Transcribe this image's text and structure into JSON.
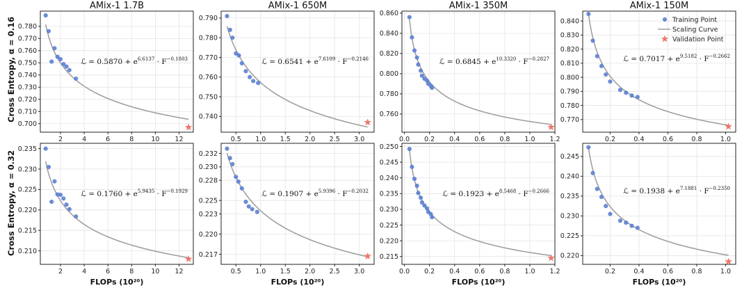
{
  "legend": {
    "training": "Training Point",
    "curve": "Scaling Curve",
    "validation": "Validation Point",
    "training_color": "#5b7fd1",
    "curve_color": "#a0a0a0",
    "validation_color": "#ee7769"
  },
  "row_labels": [
    "Cross Entropy, α = 0.16",
    "Cross Entropy, α = 0.32"
  ],
  "x_label": "FLOPs (10²⁰)",
  "chart_data": [
    {
      "type": "scatter",
      "title": "AMix-1 1.7B",
      "row": 0,
      "col": 0,
      "xlim": [
        0.3,
        13.2
      ],
      "ylim": [
        0.693,
        0.7925
      ],
      "xticks": [
        2,
        4,
        6,
        8,
        10,
        12
      ],
      "yticks": [
        0.7,
        0.71,
        0.72,
        0.73,
        0.74,
        0.75,
        0.76,
        0.77,
        0.78
      ],
      "ytick_labels": [
        "0.700",
        "0.710",
        "0.720",
        "0.730",
        "0.740",
        "0.750",
        "0.760",
        "0.770",
        "0.780"
      ],
      "xtick_labels": [
        "2",
        "4",
        "6",
        "8",
        "10",
        "12"
      ],
      "points": [
        [
          0.75,
          0.789
        ],
        [
          1.0,
          0.776
        ],
        [
          1.25,
          0.751
        ],
        [
          1.5,
          0.762
        ],
        [
          1.75,
          0.755
        ],
        [
          2.0,
          0.753
        ],
        [
          2.25,
          0.749
        ],
        [
          2.5,
          0.747
        ],
        [
          2.75,
          0.744
        ],
        [
          3.3,
          0.737
        ]
      ],
      "validation": [
        12.8,
        0.697
      ],
      "curve": {
        "a": 0.587,
        "b": 6.6137,
        "c": -0.1803,
        "x0": 0.75,
        "x1": 12.8
      },
      "eq_prefix": "ℒ = 0.5870 + e",
      "eq_exp1": "6.6137",
      "eq_mid": " · F",
      "eq_exp2": "−0.1803"
    },
    {
      "type": "scatter",
      "title": "AMix-1 650M",
      "row": 0,
      "col": 1,
      "xlim": [
        0.2,
        3.3
      ],
      "ylim": [
        0.732,
        0.7935
      ],
      "xticks": [
        0.5,
        1.0,
        1.5,
        2.0,
        2.5,
        3.0
      ],
      "yticks": [
        0.74,
        0.75,
        0.76,
        0.77,
        0.78,
        0.79
      ],
      "ytick_labels": [
        "0.740",
        "0.750",
        "0.760",
        "0.770",
        "0.780",
        "0.790"
      ],
      "xtick_labels": [
        "0.5",
        "1.0",
        "1.5",
        "2.0",
        "2.5",
        "3.0"
      ],
      "points": [
        [
          0.32,
          0.791
        ],
        [
          0.38,
          0.784
        ],
        [
          0.43,
          0.78
        ],
        [
          0.5,
          0.772
        ],
        [
          0.56,
          0.771
        ],
        [
          0.62,
          0.767
        ],
        [
          0.7,
          0.763
        ],
        [
          0.78,
          0.76
        ],
        [
          0.85,
          0.758
        ],
        [
          0.95,
          0.757
        ]
      ],
      "validation": [
        3.17,
        0.737
      ],
      "curve": {
        "a": 0.6541,
        "b": 7.6109,
        "c": -0.2146,
        "x0": 0.32,
        "x1": 3.17
      },
      "eq_prefix": "ℒ = 0.6541 + e",
      "eq_exp1": "7.6109",
      "eq_mid": " · F",
      "eq_exp2": "−0.2146"
    },
    {
      "type": "scatter",
      "title": "AMix-1 350M",
      "row": 0,
      "col": 2,
      "xlim": [
        -0.02,
        1.2
      ],
      "ylim": [
        0.742,
        0.862
      ],
      "xticks": [
        0.0,
        0.2,
        0.4,
        0.6,
        0.8,
        1.0,
        1.2
      ],
      "yticks": [
        0.76,
        0.78,
        0.8,
        0.82,
        0.84,
        0.86
      ],
      "ytick_labels": [
        "0.760",
        "0.780",
        "0.800",
        "0.820",
        "0.840",
        "0.860"
      ],
      "xtick_labels": [
        "0.0",
        "0.2",
        "0.4",
        "0.6",
        "0.8",
        "1.0",
        "1.2"
      ],
      "points": [
        [
          0.04,
          0.856
        ],
        [
          0.06,
          0.836
        ],
        [
          0.08,
          0.823
        ],
        [
          0.1,
          0.816
        ],
        [
          0.11,
          0.809
        ],
        [
          0.13,
          0.803
        ],
        [
          0.14,
          0.798
        ],
        [
          0.16,
          0.795
        ],
        [
          0.18,
          0.793
        ],
        [
          0.19,
          0.79
        ],
        [
          0.21,
          0.788
        ],
        [
          0.22,
          0.786
        ]
      ],
      "validation": [
        1.17,
        0.747
      ],
      "curve": {
        "a": 0.6845,
        "b": 10.332,
        "c": -0.2827,
        "x0": 0.04,
        "x1": 1.17
      },
      "eq_prefix": "ℒ = 0.6845 + e",
      "eq_exp1": "10.3320",
      "eq_mid": " · F",
      "eq_exp2": "−0.2827"
    },
    {
      "type": "scatter",
      "title": "AMix-1 150M",
      "row": 0,
      "col": 3,
      "xlim": [
        0.01,
        1.07
      ],
      "ylim": [
        0.761,
        0.847
      ],
      "xticks": [
        0.2,
        0.4,
        0.6,
        0.8,
        1.0
      ],
      "yticks": [
        0.77,
        0.78,
        0.79,
        0.8,
        0.81,
        0.82,
        0.83,
        0.84
      ],
      "ytick_labels": [
        "0.770",
        "0.780",
        "0.790",
        "0.800",
        "0.810",
        "0.820",
        "0.830",
        "0.840"
      ],
      "xtick_labels": [
        "0.2",
        "0.4",
        "0.6",
        "0.8",
        "1.0"
      ],
      "points": [
        [
          0.05,
          0.845
        ],
        [
          0.08,
          0.826
        ],
        [
          0.11,
          0.815
        ],
        [
          0.14,
          0.808
        ],
        [
          0.17,
          0.802
        ],
        [
          0.2,
          0.797
        ],
        [
          0.27,
          0.791
        ],
        [
          0.31,
          0.789
        ],
        [
          0.35,
          0.787
        ],
        [
          0.39,
          0.786
        ]
      ],
      "validation": [
        1.02,
        0.765
      ],
      "curve": {
        "a": 0.7017,
        "b": 9.5182,
        "c": -0.2662,
        "x0": 0.05,
        "x1": 1.02
      },
      "eq_prefix": "ℒ = 0.7017 + e",
      "eq_exp1": "9.5182",
      "eq_mid": " · F",
      "eq_exp2": "−0.2662"
    },
    {
      "type": "scatter",
      "title": "",
      "row": 1,
      "col": 0,
      "xlim": [
        0.3,
        13.2
      ],
      "ylim": [
        0.2067,
        0.2363
      ],
      "xticks": [
        2,
        4,
        6,
        8,
        10,
        12
      ],
      "yticks": [
        0.21,
        0.215,
        0.22,
        0.225,
        0.23,
        0.235
      ],
      "ytick_labels": [
        "0.210",
        "0.215",
        "0.220",
        "0.225",
        "0.230",
        "0.235"
      ],
      "xtick_labels": [
        "2",
        "4",
        "6",
        "8",
        "10",
        "12"
      ],
      "points": [
        [
          0.75,
          0.235
        ],
        [
          1.0,
          0.2305
        ],
        [
          1.25,
          0.222
        ],
        [
          1.5,
          0.227
        ],
        [
          1.75,
          0.2238
        ],
        [
          2.0,
          0.2237
        ],
        [
          2.25,
          0.2228
        ],
        [
          2.5,
          0.2213
        ],
        [
          2.75,
          0.2202
        ],
        [
          3.3,
          0.2184
        ]
      ],
      "validation": [
        12.8,
        0.208
      ],
      "curve": {
        "a": 0.176,
        "b": 5.9435,
        "c": -0.1929,
        "x0": 0.75,
        "x1": 12.8
      },
      "eq_prefix": "ℒ = 0.1760 + e",
      "eq_exp1": "5.9435",
      "eq_mid": " · F",
      "eq_exp2": "−0.1929"
    },
    {
      "type": "scatter",
      "title": "",
      "row": 1,
      "col": 1,
      "xlim": [
        0.2,
        3.3
      ],
      "ylim": [
        0.2155,
        0.2335
      ],
      "xticks": [
        0.5,
        1.0,
        1.5,
        2.0,
        2.5,
        3.0
      ],
      "yticks": [
        0.217,
        0.22,
        0.223,
        0.225,
        0.228,
        0.23,
        0.232
      ],
      "ytick_labels": [
        "0.217",
        "0.220",
        "0.223",
        "0.225",
        "0.228",
        "0.230",
        "0.232"
      ],
      "xtick_labels": [
        "0.5",
        "1.0",
        "1.5",
        "2.0",
        "2.5",
        "3.0"
      ],
      "points": [
        [
          0.32,
          0.2327
        ],
        [
          0.38,
          0.2313
        ],
        [
          0.43,
          0.2304
        ],
        [
          0.5,
          0.2285
        ],
        [
          0.55,
          0.2278
        ],
        [
          0.62,
          0.2268
        ],
        [
          0.7,
          0.2248
        ],
        [
          0.76,
          0.2241
        ],
        [
          0.83,
          0.2237
        ],
        [
          0.93,
          0.2233
        ]
      ],
      "validation": [
        3.17,
        0.2167
      ],
      "curve": {
        "a": 0.1907,
        "b": 5.9396,
        "c": -0.2032,
        "x0": 0.32,
        "x1": 3.17
      },
      "eq_prefix": "ℒ = 0.1907 + e",
      "eq_exp1": "5.9396",
      "eq_mid": " · F",
      "eq_exp2": "−0.2032"
    },
    {
      "type": "scatter",
      "title": "",
      "row": 1,
      "col": 2,
      "xlim": [
        -0.02,
        1.2
      ],
      "ylim": [
        0.2125,
        0.251
      ],
      "xticks": [
        0.0,
        0.2,
        0.4,
        0.6,
        0.8,
        1.0,
        1.2
      ],
      "yticks": [
        0.215,
        0.22,
        0.225,
        0.23,
        0.235,
        0.24,
        0.245,
        0.25
      ],
      "ytick_labels": [
        "0.215",
        "0.220",
        "0.225",
        "0.230",
        "0.235",
        "0.240",
        "0.245",
        "0.250"
      ],
      "xtick_labels": [
        "0.0",
        "0.2",
        "0.4",
        "0.6",
        "0.8",
        "1.0",
        "1.2"
      ],
      "points": [
        [
          0.04,
          0.2492
        ],
        [
          0.06,
          0.2435
        ],
        [
          0.08,
          0.2397
        ],
        [
          0.1,
          0.2375
        ],
        [
          0.11,
          0.2352
        ],
        [
          0.13,
          0.2337
        ],
        [
          0.14,
          0.2322
        ],
        [
          0.16,
          0.2312
        ],
        [
          0.18,
          0.2303
        ],
        [
          0.19,
          0.2292
        ],
        [
          0.21,
          0.2285
        ],
        [
          0.22,
          0.2275
        ]
      ],
      "validation": [
        1.17,
        0.2145
      ],
      "curve": {
        "a": 0.1923,
        "b": 8.5468,
        "c": -0.2666,
        "x0": 0.04,
        "x1": 1.17
      },
      "eq_prefix": "ℒ = 0.1923 + e",
      "eq_exp1": "8.5468",
      "eq_mid": " · F",
      "eq_exp2": "−0.2666"
    },
    {
      "type": "scatter",
      "title": "",
      "row": 1,
      "col": 3,
      "xlim": [
        0.01,
        1.07
      ],
      "ylim": [
        0.2178,
        0.2483
      ],
      "xticks": [
        0.2,
        0.4,
        0.6,
        0.8,
        1.0
      ],
      "yticks": [
        0.22,
        0.225,
        0.23,
        0.235,
        0.24,
        0.245
      ],
      "ytick_labels": [
        "0.220",
        "0.225",
        "0.230",
        "0.235",
        "0.240",
        "0.245"
      ],
      "xtick_labels": [
        "0.2",
        "0.4",
        "0.6",
        "0.8",
        "1.0"
      ],
      "points": [
        [
          0.05,
          0.2473
        ],
        [
          0.08,
          0.2408
        ],
        [
          0.11,
          0.2368
        ],
        [
          0.14,
          0.2348
        ],
        [
          0.17,
          0.2325
        ],
        [
          0.2,
          0.2305
        ],
        [
          0.27,
          0.2288
        ],
        [
          0.31,
          0.2283
        ],
        [
          0.35,
          0.2275
        ],
        [
          0.39,
          0.227
        ]
      ],
      "validation": [
        1.02,
        0.2185
      ],
      "curve": {
        "a": 0.1938,
        "b": 7.1881,
        "c": -0.235,
        "x0": 0.05,
        "x1": 1.02
      },
      "eq_prefix": "ℒ = 0.1938 + e",
      "eq_exp1": "7.1881",
      "eq_mid": " · F",
      "eq_exp2": "−0.2350"
    }
  ]
}
